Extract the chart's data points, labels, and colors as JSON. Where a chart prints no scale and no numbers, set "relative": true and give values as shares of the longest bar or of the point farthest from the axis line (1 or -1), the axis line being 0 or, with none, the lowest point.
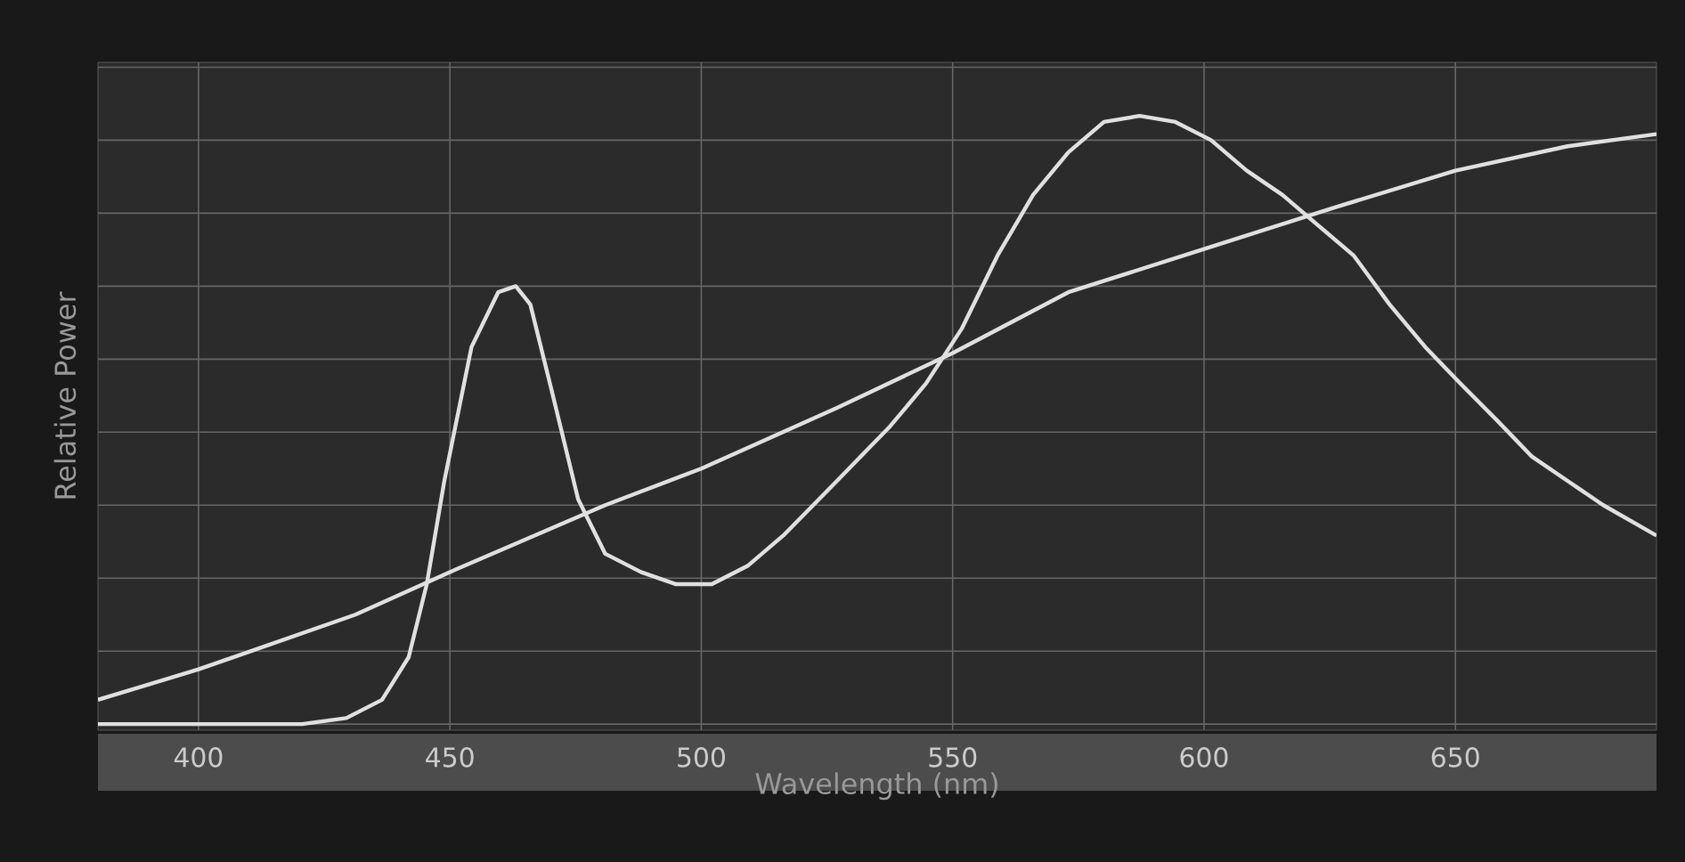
{
  "chart_data": {
    "type": "line",
    "xlabel": "Wavelength (nm)",
    "ylabel": "Relative Power",
    "relative": true,
    "xlim": [
      380,
      690
    ],
    "xticks": [
      400,
      450,
      500,
      550,
      600,
      650
    ],
    "grid": true,
    "marker": "none",
    "line_style": "solid",
    "series": [
      {
        "color": "#e0e0e0",
        "x": [
          380,
          420.6,
          429.4,
          436.5,
          441.8,
          445.4,
          448.9,
          454.3,
          459.6,
          463.1,
          466,
          470.2,
          475.5,
          480.9,
          488,
          495,
          502.1,
          509.2,
          516.3,
          527,
          537.6,
          544.7,
          551.8,
          558.9,
          566,
          573,
          580.1,
          587.2,
          594.3,
          601.4,
          608.5,
          615.6,
          622.7,
          629.8,
          636.9,
          644,
          651,
          658.2,
          665.2,
          672.3,
          679.4,
          690
        ],
        "values": [
          0,
          0,
          0.01,
          0.04,
          0.11,
          0.23,
          0.4,
          0.62,
          0.71,
          0.72,
          0.69,
          0.55,
          0.37,
          0.28,
          0.25,
          0.23,
          0.23,
          0.26,
          0.31,
          0.4,
          0.49,
          0.56,
          0.65,
          0.77,
          0.87,
          0.94,
          0.99,
          1,
          0.99,
          0.96,
          0.91,
          0.87,
          0.82,
          0.77,
          0.69,
          0.62,
          0.56,
          0.5,
          0.44,
          0.4,
          0.36,
          0.31
        ]
      },
      {
        "color": "#e0e0e0",
        "x": [
          380,
          400,
          431.2,
          450,
          480.9,
          500,
          527,
          550,
          573,
          599.6,
          626.2,
          650,
          672.3,
          690
        ],
        "values": [
          0.04,
          0.09,
          0.18,
          0.25,
          0.36,
          0.42,
          0.52,
          0.61,
          0.71,
          0.78,
          0.85,
          0.91,
          0.95,
          0.97
        ]
      }
    ]
  }
}
